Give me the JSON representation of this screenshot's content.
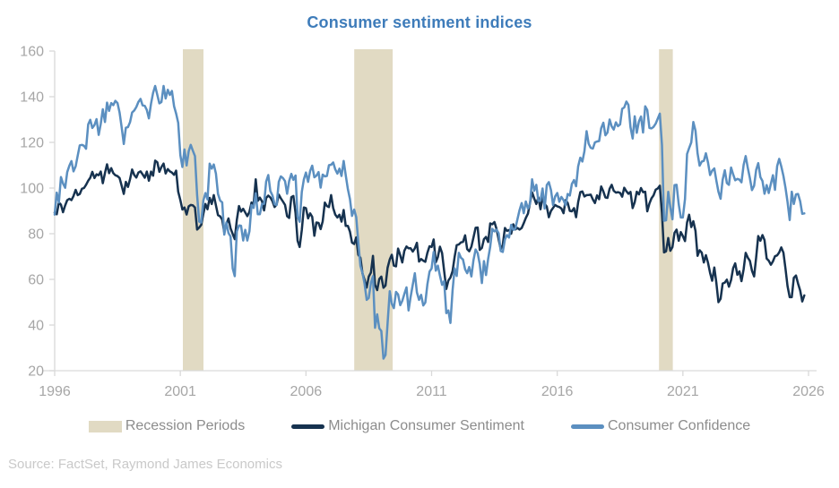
{
  "title": "Consumer sentiment indices",
  "source": "Source: FactSet, Raymond James Economics",
  "colors": {
    "title": "#3e7cba",
    "michigan": "#16324f",
    "confidence": "#5b8fc0",
    "recession": "#e1dac3",
    "axis": "#d9d9d9",
    "tick_label": "#a6a6a6",
    "legend_text": "#8c8c8c",
    "source_text": "#c9c9c9"
  },
  "legend": {
    "recession": "Recession Periods",
    "michigan": "Michigan Consumer Sentiment",
    "confidence": "Consumer Confidence"
  },
  "chart_data": {
    "type": "line",
    "title": "Consumer sentiment indices",
    "xlabel": "",
    "ylabel": "",
    "xlim": [
      1996,
      2026
    ],
    "ylim": [
      20,
      160
    ],
    "x_ticks": [
      1996,
      2001,
      2006,
      2011,
      2016,
      2021,
      2026
    ],
    "y_ticks": [
      20,
      40,
      60,
      80,
      100,
      120,
      140,
      160
    ],
    "grid": false,
    "legend_position": "bottom",
    "x_start_year": 1996,
    "x_interval_months": 1,
    "recession_bands": [
      [
        2001.1,
        2001.92
      ],
      [
        2007.92,
        2009.45
      ],
      [
        2020.05,
        2020.6
      ]
    ],
    "series": [
      {
        "name": "Michigan Consumer Sentiment",
        "color": "#16324f",
        "values": [
          89.3,
          88.5,
          93.7,
          92.7,
          89.4,
          92.4,
          94.7,
          95.3,
          94.7,
          96.5,
          99.2,
          96.9,
          97.4,
          99.7,
          100.0,
          101.4,
          103.2,
          104.5,
          107.1,
          104.4,
          106.0,
          105.6,
          107.2,
          102.1,
          106.6,
          110.4,
          106.5,
          108.7,
          106.5,
          105.6,
          105.2,
          104.4,
          100.9,
          97.4,
          102.7,
          100.5,
          103.9,
          108.1,
          105.7,
          104.6,
          106.8,
          107.3,
          106.0,
          104.5,
          107.2,
          103.2,
          107.2,
          105.4,
          112.0,
          111.3,
          107.1,
          109.2,
          110.7,
          106.4,
          108.3,
          107.3,
          106.8,
          105.8,
          107.6,
          98.4,
          94.7,
          90.6,
          91.5,
          88.4,
          92.0,
          92.6,
          92.4,
          91.5,
          81.8,
          82.7,
          83.9,
          88.8,
          93.0,
          90.7,
          95.7,
          93.0,
          96.9,
          92.4,
          88.1,
          87.6,
          86.1,
          80.6,
          84.2,
          86.7,
          82.4,
          79.9,
          77.6,
          86.0,
          92.1,
          89.7,
          90.9,
          89.3,
          87.7,
          89.6,
          93.7,
          92.6,
          103.8,
          94.4,
          95.8,
          94.2,
          90.2,
          95.6,
          96.7,
          95.9,
          94.2,
          91.7,
          92.8,
          97.1,
          95.5,
          94.1,
          92.6,
          87.7,
          86.9,
          96.0,
          96.5,
          89.1,
          76.9,
          74.2,
          81.6,
          91.5,
          91.2,
          86.7,
          88.9,
          87.4,
          79.1,
          84.9,
          84.7,
          82.0,
          85.4,
          93.6,
          92.1,
          91.7,
          96.9,
          91.3,
          88.4,
          87.1,
          88.3,
          85.3,
          90.4,
          83.4,
          83.4,
          80.9,
          76.1,
          75.5,
          78.4,
          70.8,
          69.5,
          62.6,
          59.8,
          56.4,
          61.2,
          63.0,
          70.3,
          57.6,
          55.3,
          60.1,
          61.2,
          56.3,
          57.3,
          65.1,
          68.7,
          70.8,
          66.0,
          65.7,
          73.5,
          70.6,
          67.4,
          72.5,
          74.4,
          73.6,
          73.6,
          72.2,
          73.6,
          76.0,
          67.8,
          68.9,
          68.2,
          67.7,
          71.6,
          74.5,
          74.2,
          77.5,
          67.5,
          69.8,
          74.3,
          71.5,
          63.7,
          55.8,
          59.5,
          60.8,
          63.6,
          69.9,
          75.0,
          75.3,
          76.2,
          76.4,
          79.3,
          73.2,
          72.3,
          74.3,
          78.3,
          82.6,
          82.7,
          72.9,
          73.8,
          77.6,
          78.6,
          76.4,
          84.5,
          84.1,
          85.1,
          82.1,
          77.5,
          73.2,
          75.1,
          82.5,
          81.2,
          81.6,
          80.0,
          84.1,
          81.9,
          82.5,
          81.8,
          82.5,
          84.6,
          86.9,
          88.8,
          93.6,
          98.1,
          95.4,
          93.0,
          95.9,
          90.7,
          96.1,
          93.1,
          91.9,
          87.2,
          90.0,
          91.3,
          92.6,
          92.0,
          91.7,
          91.0,
          89.0,
          94.7,
          93.5,
          90.0,
          89.8,
          91.2,
          87.2,
          93.8,
          98.2,
          98.5,
          96.3,
          96.9,
          97.0,
          97.1,
          95.0,
          93.4,
          96.8,
          95.1,
          100.7,
          98.5,
          95.9,
          95.7,
          99.7,
          101.4,
          98.8,
          98.0,
          98.2,
          97.9,
          96.2,
          100.1,
          98.6,
          97.5,
          98.3,
          91.2,
          93.8,
          98.4,
          97.2,
          100.0,
          98.2,
          98.4,
          89.8,
          93.2,
          95.5,
          96.8,
          99.3,
          99.8,
          101.0,
          89.1,
          71.8,
          72.3,
          78.1,
          72.5,
          74.1,
          80.4,
          81.8,
          76.9,
          80.7,
          79.0,
          76.8,
          84.9,
          88.3,
          82.9,
          85.5,
          81.2,
          70.3,
          72.8,
          71.7,
          67.4,
          70.6,
          67.2,
          62.8,
          59.4,
          65.2,
          58.4,
          50.0,
          51.5,
          58.2,
          58.6,
          59.9,
          56.8,
          59.7,
          64.9,
          67.0,
          62.0,
          63.5,
          59.2,
          64.4,
          71.6,
          69.5,
          68.1,
          63.8,
          61.3,
          69.7,
          79.0,
          76.9,
          79.4,
          77.2,
          69.1,
          68.2,
          66.4,
          67.9,
          70.1,
          70.5,
          71.8,
          74.0,
          71.7,
          64.7,
          57.0,
          52.2,
          52.2,
          60.7,
          61.7,
          58.2,
          55.1,
          50.3,
          53.0
        ]
      },
      {
        "name": "Consumer Confidence",
        "color": "#5b8fc0",
        "values": [
          88.4,
          98.0,
          93.7,
          104.8,
          102.0,
          100.1,
          107.0,
          109.8,
          111.8,
          107.3,
          109.5,
          114.2,
          118.7,
          118.9,
          118.5,
          117.2,
          127.9,
          129.9,
          126.3,
          127.6,
          130.2,
          123.3,
          128.1,
          134.5,
          128.9,
          137.4,
          133.8,
          137.2,
          136.3,
          138.2,
          137.2,
          133.1,
          126.4,
          119.3,
          126.4,
          126.7,
          128.9,
          133.1,
          134.0,
          135.5,
          137.7,
          139.0,
          136.2,
          136.0,
          134.2,
          130.5,
          137.0,
          141.7,
          144.7,
          140.8,
          137.1,
          137.7,
          144.7,
          139.2,
          143.0,
          140.8,
          142.5,
          135.8,
          132.6,
          128.6,
          114.4,
          109.2,
          116.9,
          109.9,
          116.1,
          118.9,
          116.3,
          114.0,
          97.0,
          85.3,
          84.9,
          94.6,
          97.8,
          95.0,
          110.7,
          108.5,
          110.3,
          106.3,
          97.4,
          94.5,
          93.7,
          79.6,
          84.9,
          80.3,
          78.8,
          64.8,
          61.4,
          81.0,
          83.6,
          83.5,
          77.0,
          81.7,
          77.0,
          81.1,
          92.5,
          91.3,
          97.7,
          88.5,
          88.5,
          93.0,
          93.1,
          102.8,
          105.7,
          98.7,
          96.7,
          92.9,
          92.6,
          102.7,
          105.1,
          104.4,
          103.0,
          97.5,
          103.1,
          106.2,
          103.6,
          105.5,
          87.5,
          85.2,
          98.3,
          103.8,
          106.8,
          102.7,
          107.5,
          109.8,
          104.7,
          105.4,
          107.0,
          100.2,
          105.9,
          105.1,
          105.3,
          110.0,
          110.2,
          111.2,
          108.2,
          106.3,
          108.5,
          105.3,
          111.9,
          105.6,
          99.5,
          95.2,
          87.8,
          90.6,
          87.3,
          76.4,
          65.9,
          62.8,
          58.1,
          51.0,
          51.9,
          58.5,
          61.4,
          38.8,
          44.7,
          38.6,
          37.4,
          25.3,
          26.9,
          40.8,
          54.8,
          49.3,
          47.4,
          54.5,
          53.4,
          48.7,
          50.6,
          53.6,
          56.5,
          46.4,
          52.3,
          57.7,
          62.7,
          54.3,
          51.0,
          53.2,
          48.6,
          49.9,
          57.8,
          63.4,
          64.8,
          72.0,
          63.8,
          66.0,
          61.7,
          57.6,
          59.2,
          45.2,
          46.4,
          40.9,
          55.2,
          64.8,
          61.5,
          71.6,
          69.5,
          68.7,
          64.4,
          62.7,
          65.4,
          61.3,
          68.4,
          73.1,
          71.5,
          66.7,
          58.4,
          68.0,
          61.9,
          69.0,
          74.3,
          82.1,
          81.0,
          81.8,
          80.2,
          72.4,
          72.0,
          77.5,
          79.4,
          78.3,
          83.9,
          81.7,
          82.2,
          86.4,
          90.3,
          93.4,
          89.0,
          94.1,
          91.0,
          93.1,
          103.8,
          98.8,
          101.4,
          94.3,
          94.6,
          99.8,
          91.0,
          101.3,
          102.6,
          99.1,
          92.6,
          96.3,
          97.8,
          94.0,
          96.1,
          94.7,
          92.4,
          97.4,
          96.7,
          101.8,
          103.5,
          100.8,
          109.5,
          113.3,
          111.6,
          116.1,
          124.9,
          119.4,
          117.6,
          117.3,
          120.0,
          120.4,
          120.6,
          126.2,
          128.6,
          123.1,
          124.3,
          130.0,
          127.0,
          125.6,
          128.8,
          127.1,
          127.9,
          134.7,
          135.3,
          137.9,
          136.4,
          126.6,
          121.7,
          131.4,
          124.2,
          129.2,
          131.3,
          124.3,
          135.8,
          134.2,
          126.3,
          126.1,
          126.8,
          128.2,
          130.4,
          132.6,
          118.8,
          85.7,
          85.9,
          98.3,
          91.7,
          86.3,
          101.3,
          101.4,
          92.9,
          87.1,
          87.1,
          95.2,
          114.9,
          117.5,
          120.0,
          128.9,
          125.1,
          115.2,
          109.8,
          111.6,
          111.9,
          115.2,
          111.1,
          105.7,
          107.6,
          108.6,
          103.2,
          98.4,
          95.3,
          103.6,
          107.8,
          102.2,
          101.4,
          109.0,
          106.0,
          103.4,
          104.0,
          103.7,
          102.5,
          110.1,
          114.0,
          108.7,
          104.3,
          99.1,
          101.0,
          108.0,
          110.9,
          104.8,
          103.1,
          97.5,
          101.3,
          97.8,
          101.9,
          105.6,
          99.2,
          109.6,
          112.8,
          109.5,
          105.3,
          100.1,
          93.9,
          86.0,
          98.4,
          93.0,
          97.2,
          97.4,
          94.2,
          88.7,
          88.9
        ]
      }
    ]
  }
}
